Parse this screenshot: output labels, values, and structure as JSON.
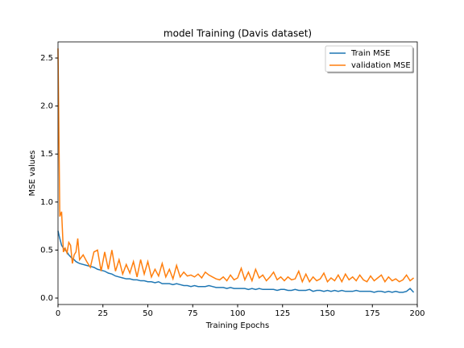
{
  "chart_data": {
    "type": "line",
    "title": "model Training (Davis dataset)",
    "x_label": "Training Epochs",
    "y_label": "MSE values",
    "x": [
      0,
      1,
      2,
      3,
      4,
      5,
      6,
      7,
      8,
      9,
      10,
      11,
      12,
      14,
      16,
      18,
      20,
      22,
      24,
      26,
      28,
      30,
      32,
      34,
      36,
      38,
      40,
      42,
      44,
      46,
      48,
      50,
      52,
      54,
      56,
      58,
      60,
      62,
      64,
      66,
      68,
      70,
      72,
      74,
      76,
      78,
      80,
      82,
      84,
      86,
      88,
      90,
      92,
      94,
      96,
      98,
      100,
      102,
      104,
      106,
      108,
      110,
      112,
      114,
      116,
      118,
      120,
      122,
      124,
      126,
      128,
      130,
      132,
      134,
      136,
      138,
      140,
      142,
      144,
      146,
      148,
      150,
      152,
      154,
      156,
      158,
      160,
      162,
      164,
      166,
      168,
      170,
      172,
      174,
      176,
      178,
      180,
      182,
      184,
      186,
      188,
      190,
      192,
      194,
      196,
      198
    ],
    "series": [
      {
        "name": "Train MSE",
        "color": "#1f77b4",
        "values": [
          0.7,
          0.62,
          0.55,
          0.52,
          0.5,
          0.48,
          0.45,
          0.43,
          0.41,
          0.4,
          0.38,
          0.37,
          0.36,
          0.35,
          0.34,
          0.33,
          0.32,
          0.3,
          0.29,
          0.28,
          0.26,
          0.25,
          0.23,
          0.22,
          0.21,
          0.2,
          0.2,
          0.19,
          0.19,
          0.18,
          0.18,
          0.17,
          0.17,
          0.16,
          0.17,
          0.15,
          0.15,
          0.15,
          0.14,
          0.15,
          0.14,
          0.13,
          0.13,
          0.12,
          0.13,
          0.12,
          0.12,
          0.12,
          0.13,
          0.12,
          0.11,
          0.11,
          0.11,
          0.1,
          0.11,
          0.1,
          0.1,
          0.1,
          0.1,
          0.09,
          0.1,
          0.09,
          0.1,
          0.09,
          0.09,
          0.09,
          0.09,
          0.08,
          0.09,
          0.09,
          0.08,
          0.08,
          0.09,
          0.08,
          0.08,
          0.08,
          0.09,
          0.07,
          0.08,
          0.08,
          0.07,
          0.08,
          0.07,
          0.08,
          0.07,
          0.08,
          0.07,
          0.07,
          0.07,
          0.08,
          0.07,
          0.07,
          0.07,
          0.07,
          0.06,
          0.07,
          0.07,
          0.06,
          0.07,
          0.06,
          0.07,
          0.06,
          0.06,
          0.07,
          0.1,
          0.06
        ]
      },
      {
        "name": "validation MSE",
        "color": "#ff7f0e",
        "values": [
          2.6,
          0.85,
          0.9,
          0.48,
          0.52,
          0.47,
          0.58,
          0.55,
          0.36,
          0.45,
          0.48,
          0.62,
          0.4,
          0.45,
          0.38,
          0.32,
          0.48,
          0.5,
          0.28,
          0.48,
          0.3,
          0.5,
          0.28,
          0.4,
          0.25,
          0.35,
          0.26,
          0.38,
          0.22,
          0.4,
          0.25,
          0.38,
          0.22,
          0.3,
          0.23,
          0.36,
          0.22,
          0.3,
          0.2,
          0.34,
          0.22,
          0.27,
          0.23,
          0.24,
          0.22,
          0.25,
          0.21,
          0.27,
          0.24,
          0.22,
          0.2,
          0.19,
          0.22,
          0.18,
          0.24,
          0.19,
          0.21,
          0.31,
          0.19,
          0.27,
          0.18,
          0.3,
          0.21,
          0.24,
          0.18,
          0.22,
          0.27,
          0.19,
          0.22,
          0.18,
          0.22,
          0.19,
          0.2,
          0.28,
          0.17,
          0.25,
          0.17,
          0.22,
          0.18,
          0.2,
          0.26,
          0.17,
          0.21,
          0.18,
          0.24,
          0.17,
          0.25,
          0.19,
          0.22,
          0.18,
          0.24,
          0.19,
          0.17,
          0.23,
          0.18,
          0.21,
          0.24,
          0.17,
          0.22,
          0.18,
          0.2,
          0.17,
          0.19,
          0.24,
          0.18,
          0.21
        ]
      }
    ],
    "xlim": [
      0,
      200
    ],
    "xticks": [
      0,
      25,
      50,
      75,
      100,
      125,
      150,
      175,
      200
    ],
    "ylim": [
      -0.067,
      2.668
    ],
    "yticks": [
      {
        "value": 0,
        "label": "0.0"
      },
      0.5,
      {
        "value": 1,
        "label": "1.0"
      },
      1.5,
      {
        "value": 2,
        "label": "2.0"
      },
      2.5
    ],
    "legend": "upper right"
  }
}
